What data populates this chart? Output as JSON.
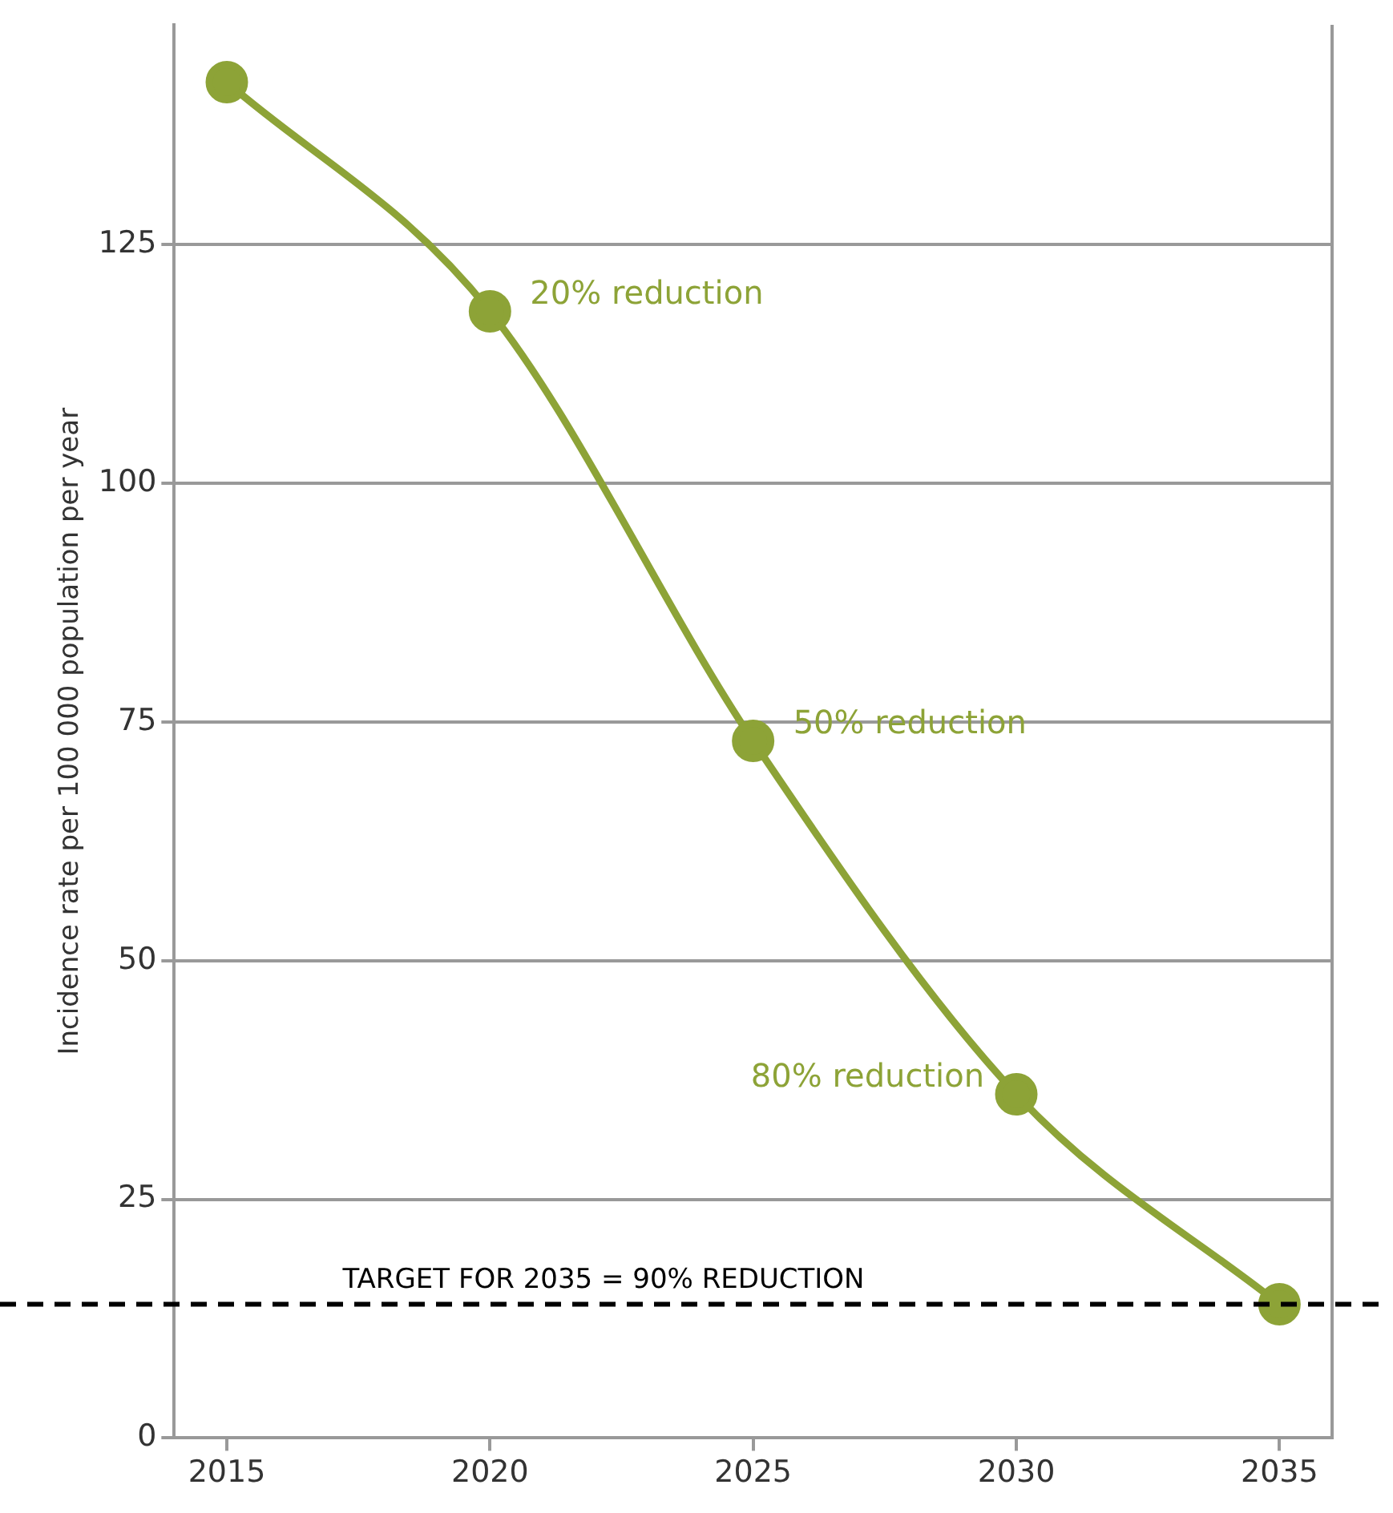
{
  "chart_data": {
    "type": "line",
    "ylabel": "Incidence rate per 100 000 population per year",
    "x": [
      2015,
      2020,
      2025,
      2030,
      2035
    ],
    "series": [
      {
        "color": "#8da337",
        "values": [
          142,
          118,
          73,
          36,
          14
        ]
      }
    ],
    "xlim": [
      2014,
      2036
    ],
    "xticks": [
      2015,
      2020,
      2025,
      2030,
      2035
    ],
    "ylim": [
      0,
      148
    ],
    "yticks": [
      0,
      25,
      50,
      75,
      100,
      125
    ],
    "grid": "y",
    "marker": "circle",
    "line_style": "solid",
    "legend": false,
    "ref_lines": [
      {
        "axis": "y",
        "value": 14,
        "color": "#000000",
        "line_style": "dashed"
      }
    ],
    "annotations": [
      {
        "text": "20% reduction",
        "x": 2020,
        "y": 118
      },
      {
        "text": "50% reduction",
        "x": 2025,
        "y": 73
      },
      {
        "text": "80% reduction",
        "x": 2030,
        "y": 36
      },
      {
        "text": "TARGET FOR 2035 = 90% REDUCTION",
        "x": 2017.2,
        "y": 14
      }
    ]
  }
}
